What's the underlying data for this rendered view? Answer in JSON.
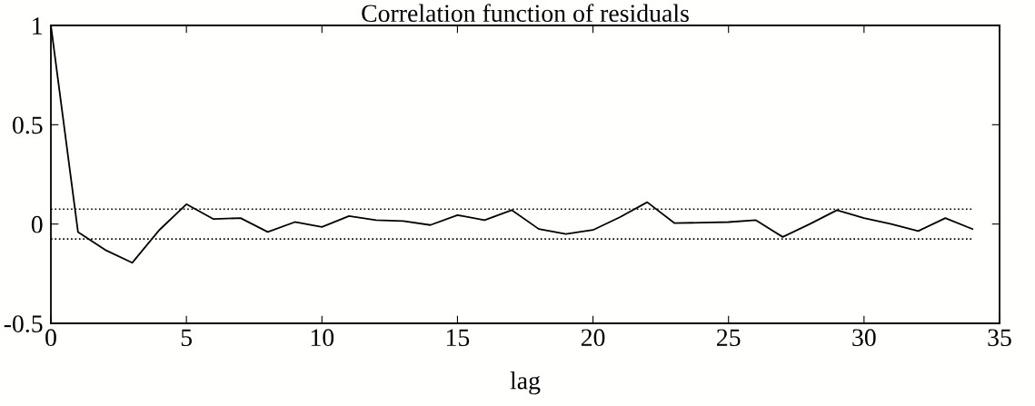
{
  "chart_data": {
    "type": "line",
    "title": "Correlation function of residuals",
    "xlabel": "lag",
    "x": [
      0,
      1,
      2,
      3,
      4,
      5,
      6,
      7,
      8,
      9,
      10,
      11,
      12,
      13,
      14,
      15,
      16,
      17,
      18,
      19,
      20,
      21,
      22,
      23,
      24,
      25,
      26,
      27,
      28,
      29,
      30,
      31,
      32,
      33,
      34
    ],
    "series": [
      {
        "color": "#000000",
        "values": [
          1,
          -0.04,
          -0.13,
          -0.195,
          -0.03,
          0.1,
          0.025,
          0.03,
          -0.04,
          0.01,
          -0.015,
          0.04,
          0.02,
          0.015,
          -0.005,
          0.045,
          0.02,
          0.07,
          -0.025,
          -0.05,
          -0.03,
          0.035,
          0.11,
          0.005,
          0.007,
          0.01,
          0.02,
          -0.065,
          0,
          0.07,
          0.03,
          0,
          -0.035,
          0.03,
          -0.025
        ]
      }
    ],
    "xlim": [
      0,
      35
    ],
    "xticks": [
      0,
      5,
      10,
      15,
      20,
      25,
      30,
      35
    ],
    "ylim": [
      -0.5,
      1
    ],
    "yticks": [
      -0.5,
      0.5,
      0,
      1
    ],
    "ref_lines": [
      {
        "axis": "y",
        "value": 0.075,
        "color": "#000000",
        "line_style": "dotted"
      },
      {
        "axis": "y",
        "value": -0.075,
        "color": "#000000",
        "line_style": "dotted"
      }
    ],
    "grid": false,
    "marker": "none",
    "line_style": "solid"
  }
}
